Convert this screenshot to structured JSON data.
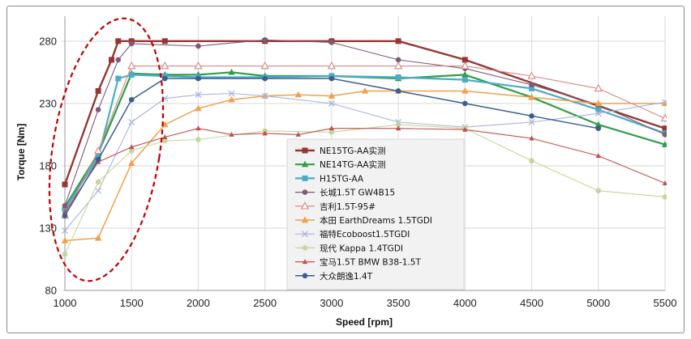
{
  "chart_data": {
    "type": "line",
    "title": "",
    "xlabel": "Speed [rpm]",
    "ylabel": "Torque [Nm]",
    "xlim": [
      1000,
      5500
    ],
    "ylim": [
      80,
      300
    ],
    "xticks": [
      1000,
      1500,
      2000,
      2500,
      3000,
      3500,
      4000,
      4500,
      5000,
      5500
    ],
    "yticks": [
      80,
      130,
      180,
      230,
      280
    ],
    "grid": true,
    "legend_position": "center",
    "annotation": "dashed red ellipse highlighting low-speed region (1000-1500 rpm)",
    "series": [
      {
        "name": "NE15TG-AA实测",
        "color": "#953735",
        "marker": "square",
        "width": 2.4,
        "x": [
          1000,
          1250,
          1350,
          1400,
          1500,
          1750,
          2500,
          3000,
          3500,
          4000,
          5000,
          5500
        ],
        "y": [
          165,
          240,
          265,
          280,
          280,
          280,
          280,
          280,
          280,
          265,
          228,
          210
        ]
      },
      {
        "name": "NE14TG-AA实测",
        "color": "#2e9e48",
        "marker": "triangle",
        "width": 2.2,
        "x": [
          1000,
          1250,
          1500,
          1750,
          2000,
          2250,
          2500,
          3000,
          3500,
          4000,
          4500,
          5000,
          5500
        ],
        "y": [
          147,
          190,
          254,
          253,
          253,
          255,
          252,
          252,
          250,
          253,
          235,
          213,
          197
        ]
      },
      {
        "name": "H15TG-AA",
        "color": "#4bacc6",
        "marker": "square",
        "width": 2.2,
        "x": [
          1000,
          1250,
          1400,
          1500,
          1750,
          2000,
          2500,
          3000,
          3500,
          4000,
          4500,
          5000,
          5500
        ],
        "y": [
          145,
          187,
          250,
          253,
          252,
          251,
          251,
          252,
          251,
          249,
          242,
          225,
          206
        ]
      },
      {
        "name": "长城1.5T GW4B15",
        "color": "#7e5a78",
        "marker": "circle",
        "width": 1.1,
        "x": [
          1000,
          1250,
          1400,
          1500,
          2000,
          2500,
          3000,
          3500,
          4000,
          4500,
          5000,
          5500
        ],
        "y": [
          148,
          225,
          265,
          278,
          276,
          281,
          279,
          265,
          258,
          245,
          229,
          205
        ]
      },
      {
        "name": "吉利1.5T-95#",
        "color": "#d98585",
        "marker": "triangle-open",
        "width": 1.1,
        "x": [
          1000,
          1250,
          1500,
          1750,
          2000,
          2500,
          3000,
          3500,
          4000,
          4500,
          5000,
          5500
        ],
        "y": [
          140,
          192,
          260,
          260,
          260,
          260,
          260,
          260,
          260,
          252,
          242,
          218
        ]
      },
      {
        "name": "本田 EarthDreams 1.5TGDI",
        "color": "#f0a04b",
        "marker": "triangle",
        "width": 1.5,
        "x": [
          1000,
          1250,
          1500,
          1750,
          2000,
          2250,
          2500,
          2750,
          3000,
          3250,
          3500,
          4000,
          4500,
          5000,
          5500
        ],
        "y": [
          120,
          122,
          182,
          213,
          226,
          233,
          236,
          237,
          236,
          240,
          240,
          240,
          235,
          230,
          230
        ]
      },
      {
        "name": "福特Ecoboost1.5TGDI",
        "color": "#a8b4dc",
        "marker": "cross",
        "width": 1.1,
        "x": [
          1000,
          1250,
          1500,
          1750,
          2000,
          2250,
          2500,
          3000,
          3500,
          4000,
          4500,
          5000,
          5500
        ],
        "y": [
          128,
          160,
          215,
          234,
          237,
          238,
          236,
          230,
          215,
          211,
          215,
          222,
          231
        ]
      },
      {
        "name": "现代 Kappa 1.4TGDI",
        "color": "#c4d79b",
        "marker": "circle",
        "width": 1.1,
        "x": [
          1000,
          1250,
          1500,
          1750,
          2000,
          2500,
          3000,
          3500,
          4000,
          4500,
          5000,
          5500
        ],
        "y": [
          109,
          167,
          192,
          200,
          201,
          208,
          207,
          213,
          210,
          184,
          160,
          155
        ]
      },
      {
        "name": "宝马1.5T BMW B38-1.5T",
        "color": "#c0504d",
        "marker": "triangle-small",
        "width": 1.1,
        "x": [
          1000,
          1250,
          1500,
          1750,
          2000,
          2250,
          2500,
          2750,
          3000,
          3500,
          4000,
          4500,
          5000,
          5500
        ],
        "y": [
          143,
          183,
          195,
          203,
          210,
          205,
          206,
          205,
          210,
          210,
          209,
          202,
          188,
          166
        ]
      },
      {
        "name": "大众朗逸1.4T",
        "color": "#3a5f8f",
        "marker": "circle",
        "width": 1.5,
        "x": [
          1000,
          1250,
          1500,
          1750,
          2000,
          2500,
          3000,
          3500,
          4000,
          4500,
          5000
        ],
        "y": [
          140,
          185,
          233,
          250,
          250,
          250,
          250,
          240,
          230,
          220,
          210
        ]
      }
    ]
  }
}
